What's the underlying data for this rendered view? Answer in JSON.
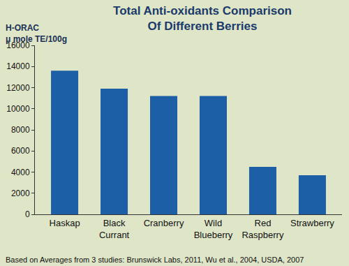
{
  "chart_data": {
    "type": "bar",
    "title": "Total Anti-oxidants Comparison\nOf Different Berries",
    "y_label": "H-ORAC\nμ mole TE/100g",
    "categories": [
      "Haskap",
      "Black Currant",
      "Cranberry",
      "Wild Blueberry",
      "Red Raspberry",
      "Strawberry"
    ],
    "values": [
      13600,
      11900,
      11200,
      11200,
      4500,
      3700
    ],
    "color": "#1d5fa6",
    "ylim": [
      0,
      16000
    ],
    "yticks": [
      0,
      2000,
      4000,
      6000,
      8000,
      10000,
      12000,
      14000,
      16000
    ],
    "grid": false,
    "annotations": [
      "Based on Averages from 3 studies: Brunswick Labs, 2011, Wu et al., 2004, USDA, 2007"
    ]
  }
}
